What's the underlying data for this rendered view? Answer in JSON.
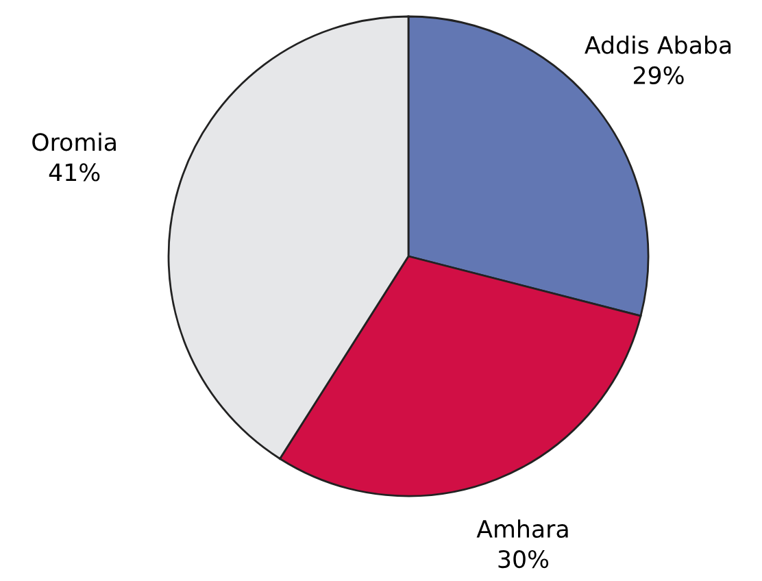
{
  "chart_data": {
    "type": "pie",
    "categories": [
      "Addis Ababa",
      "Amhara",
      "Oromia"
    ],
    "values": [
      29,
      30,
      41
    ],
    "colors": [
      "#6277b3",
      "#d10f45",
      "#e6e7e9"
    ],
    "value_labels": [
      "29%",
      "30%",
      "41%"
    ]
  }
}
